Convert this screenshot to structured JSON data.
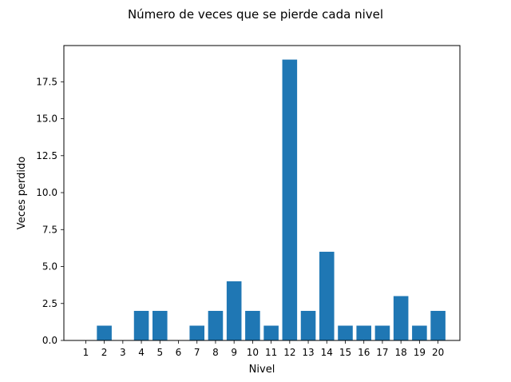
{
  "chart_data": {
    "type": "bar",
    "title": "Número de veces que se pierde cada nivel",
    "xlabel": "Nivel",
    "ylabel": "Veces perdido",
    "categories": [
      "1",
      "2",
      "3",
      "4",
      "5",
      "6",
      "7",
      "8",
      "9",
      "10",
      "11",
      "12",
      "13",
      "14",
      "15",
      "16",
      "17",
      "18",
      "19",
      "20"
    ],
    "values": [
      0,
      1,
      0,
      2,
      2,
      0,
      1,
      2,
      4,
      2,
      1,
      19,
      2,
      6,
      1,
      1,
      1,
      3,
      1,
      2
    ],
    "ylim": [
      0,
      19.95
    ],
    "yticks": [
      "0.0",
      "2.5",
      "5.0",
      "7.5",
      "10.0",
      "12.5",
      "15.0",
      "17.5"
    ],
    "grid": false,
    "bar_color": "#1f77b4"
  }
}
